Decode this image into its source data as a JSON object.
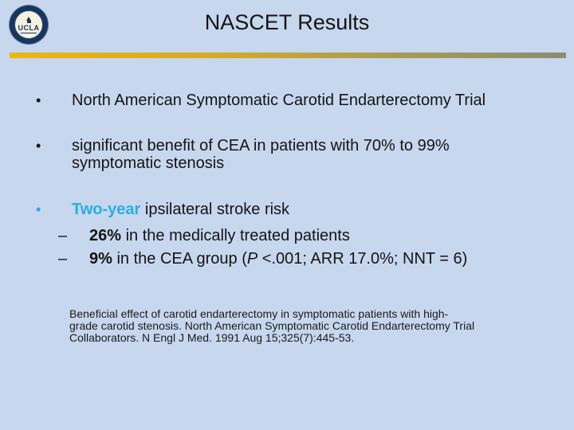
{
  "slide": {
    "title": "NASCET Results",
    "logo": {
      "text": "UCLA"
    },
    "glyphs": {
      "bullet": "•",
      "dash": "–"
    },
    "colors": {
      "background": "#C6D7EE",
      "title_text": "#141414",
      "body_text": "#141414",
      "highlight_cyan": "#29AEE2",
      "divider_gradient_left": "#EDB50F",
      "divider_gradient_right": "#8C8C72"
    },
    "bullets": [
      {
        "label": "North American Symptomatic Carotid Endarterectomy Trial"
      },
      {
        "label": "significant benefit of CEA in patients with 70% to 99%\nsymptomatic stenosis"
      },
      {
        "highlight": "Two-year",
        "rest": " ipsilateral stroke risk"
      }
    ],
    "sub_bullets": [
      {
        "bold": "26%",
        "rest": " in the medically treated patients"
      },
      {
        "bold": "9%",
        "pre": " in the CEA group (",
        "italic": "P",
        "post": " <.001; ARR 17.0%; NNT = 6)"
      }
    ],
    "citation": "Beneficial effect of carotid endarterectomy in symptomatic patients with high-\ngrade carotid stenosis. North American Symptomatic Carotid Endarterectomy Trial\nCollaborators. N Engl J Med. 1991 Aug 15;325(7):445-53."
  }
}
